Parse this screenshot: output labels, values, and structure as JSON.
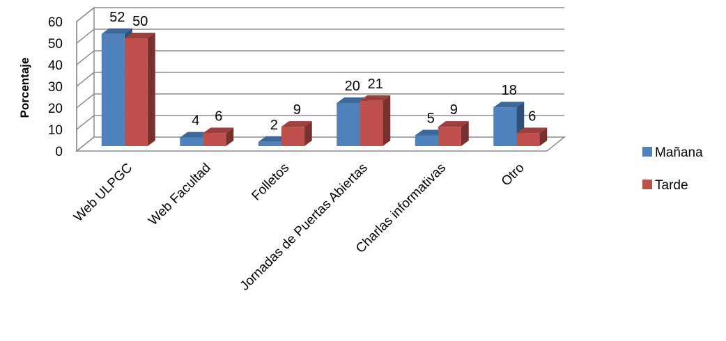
{
  "chart_data": {
    "type": "bar",
    "categories": [
      "Web ULPGC",
      "Web Facultad",
      "Folletos",
      "Jornadas de Puertas Abiertas",
      "Charlas informativas",
      "Otro"
    ],
    "series": [
      {
        "name": "Mañana",
        "values": [
          52,
          4,
          2,
          20,
          5,
          18
        ],
        "color": "#4f81bd"
      },
      {
        "name": "Tarde",
        "values": [
          50,
          6,
          9,
          21,
          9,
          6
        ],
        "color": "#c0504d"
      }
    ],
    "title": "",
    "xlabel": "",
    "ylabel": "Porcentaje",
    "ylim": [
      0,
      60
    ],
    "yticks": [
      0,
      10,
      20,
      30,
      40,
      50,
      60
    ],
    "grid": true,
    "legend": "right",
    "style": "3d-clustered-column"
  }
}
